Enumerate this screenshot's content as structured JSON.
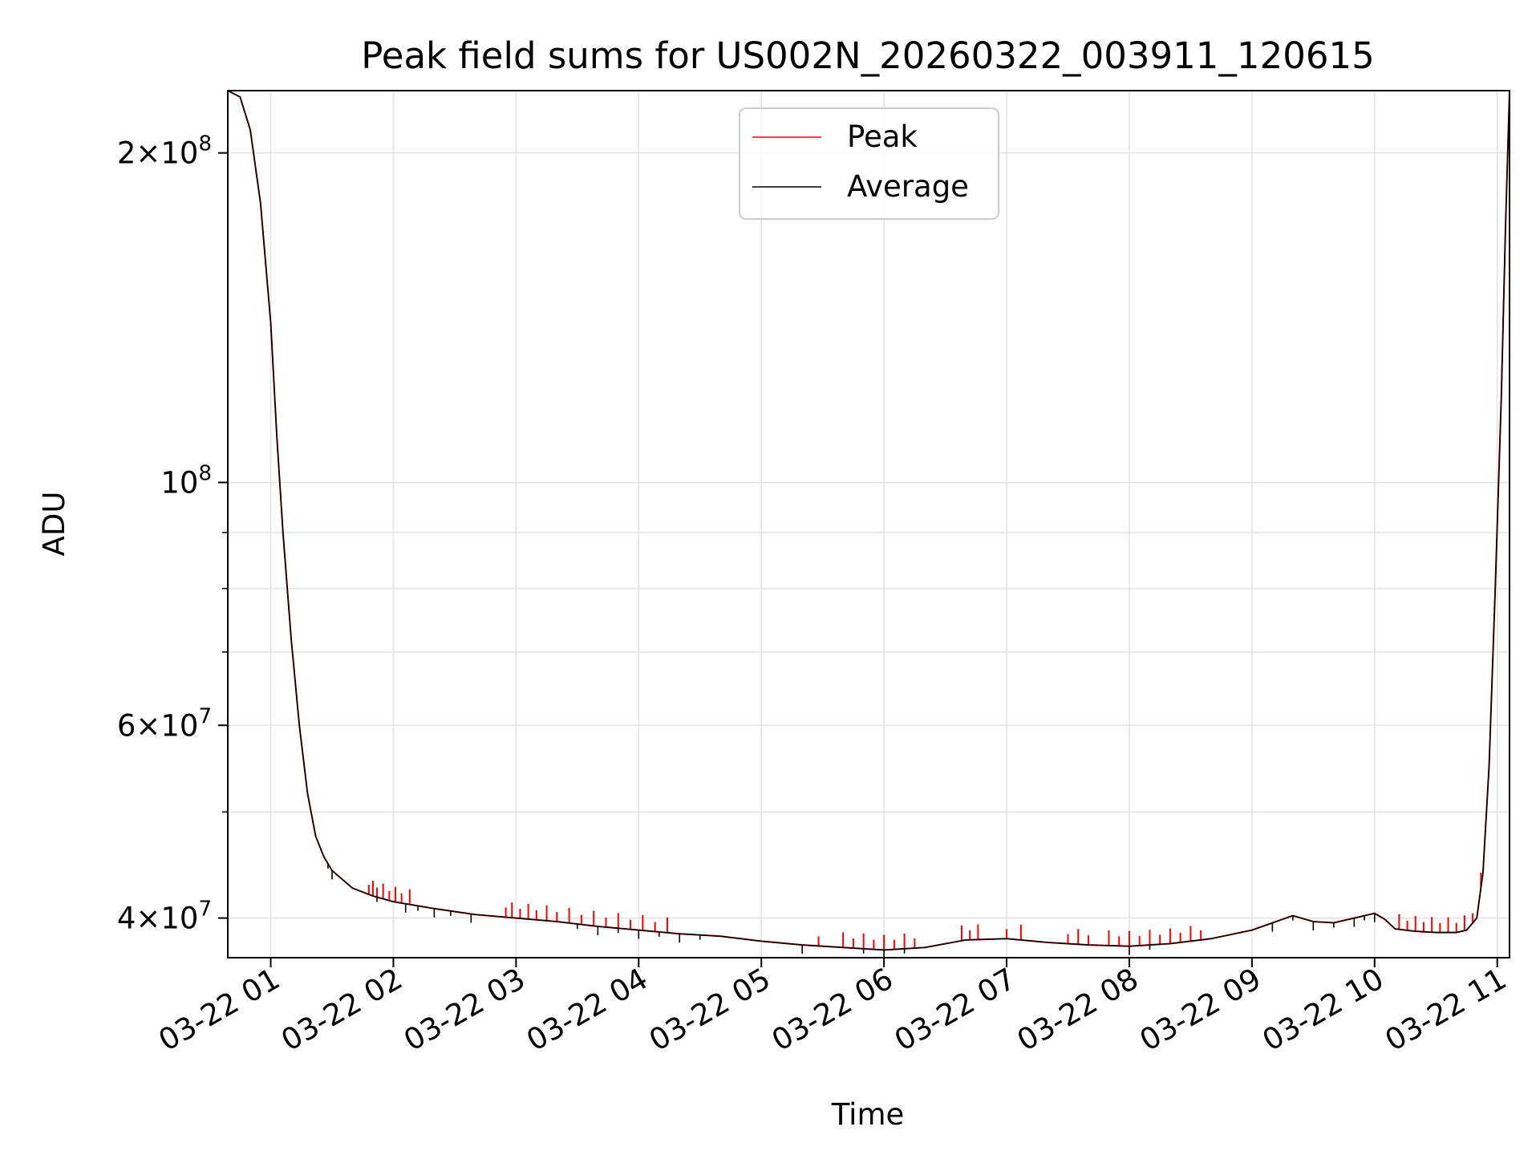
{
  "chart_data": {
    "type": "line",
    "title": "Peak field sums for US002N_20260322_003911_120615",
    "xlabel": "Time",
    "ylabel": "ADU",
    "x_range": [
      "2026-03-22 00:39",
      "2026-03-22 11:06"
    ],
    "y_scale": "log",
    "ylim": [
      36800000,
      228000000
    ],
    "grid": true,
    "legend_position": "top-center",
    "x_ticks": [
      {
        "value": "2026-03-22 01:00",
        "label": "03-22 01"
      },
      {
        "value": "2026-03-22 02:00",
        "label": "03-22 02"
      },
      {
        "value": "2026-03-22 03:00",
        "label": "03-22 03"
      },
      {
        "value": "2026-03-22 04:00",
        "label": "03-22 04"
      },
      {
        "value": "2026-03-22 05:00",
        "label": "03-22 05"
      },
      {
        "value": "2026-03-22 06:00",
        "label": "03-22 06"
      },
      {
        "value": "2026-03-22 07:00",
        "label": "03-22 07"
      },
      {
        "value": "2026-03-22 08:00",
        "label": "03-22 08"
      },
      {
        "value": "2026-03-22 09:00",
        "label": "03-22 09"
      },
      {
        "value": "2026-03-22 10:00",
        "label": "03-22 10"
      },
      {
        "value": "2026-03-22 11:00",
        "label": "03-22 11"
      }
    ],
    "y_major_ticks": [
      {
        "value": 40000000,
        "mantissa": "4",
        "exponent": "7"
      },
      {
        "value": 60000000,
        "mantissa": "6",
        "exponent": "7"
      },
      {
        "value": 100000000,
        "mantissa": "",
        "exponent": "8"
      },
      {
        "value": 200000000,
        "mantissa": "2",
        "exponent": "8"
      }
    ],
    "y_minor_ticks": [
      50000000,
      70000000,
      80000000,
      90000000
    ],
    "series": [
      {
        "name": "Peak",
        "color": "#ff0000",
        "x": [
          "2026-03-22 00:39",
          "2026-03-22 00:45",
          "2026-03-22 00:50",
          "2026-03-22 00:55",
          "2026-03-22 01:00",
          "2026-03-22 01:03",
          "2026-03-22 01:06",
          "2026-03-22 01:10",
          "2026-03-22 01:14",
          "2026-03-22 01:18",
          "2026-03-22 01:22",
          "2026-03-22 01:26",
          "2026-03-22 01:30",
          "2026-03-22 01:40",
          "2026-03-22 01:50",
          "2026-03-22 02:00",
          "2026-03-22 02:20",
          "2026-03-22 02:40",
          "2026-03-22 03:00",
          "2026-03-22 03:20",
          "2026-03-22 03:40",
          "2026-03-22 04:00",
          "2026-03-22 04:20",
          "2026-03-22 04:40",
          "2026-03-22 05:00",
          "2026-03-22 05:20",
          "2026-03-22 05:40",
          "2026-03-22 06:00",
          "2026-03-22 06:20",
          "2026-03-22 06:40",
          "2026-03-22 07:00",
          "2026-03-22 07:20",
          "2026-03-22 07:40",
          "2026-03-22 08:00",
          "2026-03-22 08:20",
          "2026-03-22 08:40",
          "2026-03-22 09:00",
          "2026-03-22 09:15",
          "2026-03-22 09:20",
          "2026-03-22 09:30",
          "2026-03-22 09:40",
          "2026-03-22 09:50",
          "2026-03-22 10:00",
          "2026-03-22 10:05",
          "2026-03-22 10:10",
          "2026-03-22 10:20",
          "2026-03-22 10:30",
          "2026-03-22 10:40",
          "2026-03-22 10:45",
          "2026-03-22 10:50",
          "2026-03-22 10:53",
          "2026-03-22 10:56",
          "2026-03-22 10:59",
          "2026-03-22 11:02",
          "2026-03-22 11:04",
          "2026-03-22 11:06"
        ],
        "y": [
          228000000,
          225000000,
          210000000,
          180000000,
          140000000,
          110000000,
          90000000,
          72000000,
          60000000,
          52000000,
          47500000,
          45500000,
          44200000,
          42600000,
          41900000,
          41400000,
          40800000,
          40300000,
          40000000,
          39700000,
          39300000,
          39000000,
          38700000,
          38500000,
          38100000,
          37800000,
          37600000,
          37400000,
          37600000,
          38200000,
          38300000,
          38000000,
          37800000,
          37700000,
          37900000,
          38300000,
          39000000,
          39900000,
          40200000,
          39700000,
          39600000,
          40000000,
          40400000,
          39900000,
          39100000,
          38900000,
          38800000,
          38800000,
          39000000,
          40000000,
          44000000,
          55000000,
          80000000,
          120000000,
          170000000,
          228000000
        ],
        "spikes": [
          "2026-03-22 01:48",
          "2026-03-22 01:50",
          "2026-03-22 01:52",
          "2026-03-22 01:55",
          "2026-03-22 01:58",
          "2026-03-22 02:01",
          "2026-03-22 02:04",
          "2026-03-22 02:08",
          "2026-03-22 02:55",
          "2026-03-22 02:58",
          "2026-03-22 03:02",
          "2026-03-22 03:06",
          "2026-03-22 03:10",
          "2026-03-22 03:15",
          "2026-03-22 03:20",
          "2026-03-22 03:26",
          "2026-03-22 03:32",
          "2026-03-22 03:38",
          "2026-03-22 03:44",
          "2026-03-22 03:50",
          "2026-03-22 03:56",
          "2026-03-22 04:02",
          "2026-03-22 04:08",
          "2026-03-22 04:14",
          "2026-03-22 05:28",
          "2026-03-22 05:40",
          "2026-03-22 05:45",
          "2026-03-22 05:50",
          "2026-03-22 05:55",
          "2026-03-22 06:00",
          "2026-03-22 06:05",
          "2026-03-22 06:10",
          "2026-03-22 06:15",
          "2026-03-22 06:38",
          "2026-03-22 06:42",
          "2026-03-22 06:46",
          "2026-03-22 07:00",
          "2026-03-22 07:07",
          "2026-03-22 07:30",
          "2026-03-22 07:35",
          "2026-03-22 07:40",
          "2026-03-22 07:50",
          "2026-03-22 07:55",
          "2026-03-22 08:00",
          "2026-03-22 08:05",
          "2026-03-22 08:10",
          "2026-03-22 08:15",
          "2026-03-22 08:20",
          "2026-03-22 08:25",
          "2026-03-22 08:30",
          "2026-03-22 08:35",
          "2026-03-22 10:12",
          "2026-03-22 10:16",
          "2026-03-22 10:20",
          "2026-03-22 10:24",
          "2026-03-22 10:28",
          "2026-03-22 10:32",
          "2026-03-22 10:36",
          "2026-03-22 10:40",
          "2026-03-22 10:44",
          "2026-03-22 10:48",
          "2026-03-22 10:52"
        ]
      },
      {
        "name": "Average",
        "color": "#000000",
        "x": [
          "2026-03-22 00:39",
          "2026-03-22 00:45",
          "2026-03-22 00:50",
          "2026-03-22 00:55",
          "2026-03-22 01:00",
          "2026-03-22 01:03",
          "2026-03-22 01:06",
          "2026-03-22 01:10",
          "2026-03-22 01:14",
          "2026-03-22 01:18",
          "2026-03-22 01:22",
          "2026-03-22 01:26",
          "2026-03-22 01:30",
          "2026-03-22 01:40",
          "2026-03-22 01:50",
          "2026-03-22 02:00",
          "2026-03-22 02:20",
          "2026-03-22 02:40",
          "2026-03-22 03:00",
          "2026-03-22 03:20",
          "2026-03-22 03:40",
          "2026-03-22 04:00",
          "2026-03-22 04:20",
          "2026-03-22 04:40",
          "2026-03-22 05:00",
          "2026-03-22 05:20",
          "2026-03-22 05:40",
          "2026-03-22 06:00",
          "2026-03-22 06:20",
          "2026-03-22 06:40",
          "2026-03-22 07:00",
          "2026-03-22 07:20",
          "2026-03-22 07:40",
          "2026-03-22 08:00",
          "2026-03-22 08:20",
          "2026-03-22 08:40",
          "2026-03-22 09:00",
          "2026-03-22 09:15",
          "2026-03-22 09:20",
          "2026-03-22 09:30",
          "2026-03-22 09:40",
          "2026-03-22 09:50",
          "2026-03-22 10:00",
          "2026-03-22 10:05",
          "2026-03-22 10:10",
          "2026-03-22 10:20",
          "2026-03-22 10:30",
          "2026-03-22 10:40",
          "2026-03-22 10:45",
          "2026-03-22 10:50",
          "2026-03-22 10:53",
          "2026-03-22 10:56",
          "2026-03-22 10:59",
          "2026-03-22 11:02",
          "2026-03-22 11:04",
          "2026-03-22 11:06"
        ],
        "y": [
          228000000,
          225000000,
          210000000,
          180000000,
          140000000,
          110000000,
          90000000,
          72000000,
          60000000,
          52000000,
          47500000,
          45500000,
          44200000,
          42600000,
          41900000,
          41400000,
          40800000,
          40300000,
          40000000,
          39700000,
          39300000,
          39000000,
          38700000,
          38500000,
          38100000,
          37800000,
          37600000,
          37400000,
          37600000,
          38200000,
          38300000,
          38000000,
          37800000,
          37700000,
          37900000,
          38300000,
          39000000,
          39900000,
          40200000,
          39700000,
          39600000,
          40000000,
          40400000,
          39900000,
          39100000,
          38900000,
          38800000,
          38800000,
          39000000,
          40000000,
          44000000,
          55000000,
          80000000,
          120000000,
          170000000,
          228000000
        ],
        "dips": [
          "2026-03-22 01:28",
          "2026-03-22 01:30",
          "2026-03-22 01:52",
          "2026-03-22 02:06",
          "2026-03-22 02:12",
          "2026-03-22 02:20",
          "2026-03-22 02:28",
          "2026-03-22 02:38",
          "2026-03-22 03:30",
          "2026-03-22 03:40",
          "2026-03-22 03:50",
          "2026-03-22 04:00",
          "2026-03-22 04:10",
          "2026-03-22 04:20",
          "2026-03-22 04:30",
          "2026-03-22 05:20",
          "2026-03-22 05:50",
          "2026-03-22 06:00",
          "2026-03-22 06:10",
          "2026-03-22 08:00",
          "2026-03-22 08:10",
          "2026-03-22 09:10",
          "2026-03-22 09:20",
          "2026-03-22 09:30",
          "2026-03-22 09:40",
          "2026-03-22 09:50",
          "2026-03-22 09:55",
          "2026-03-22 10:00"
        ]
      }
    ]
  }
}
